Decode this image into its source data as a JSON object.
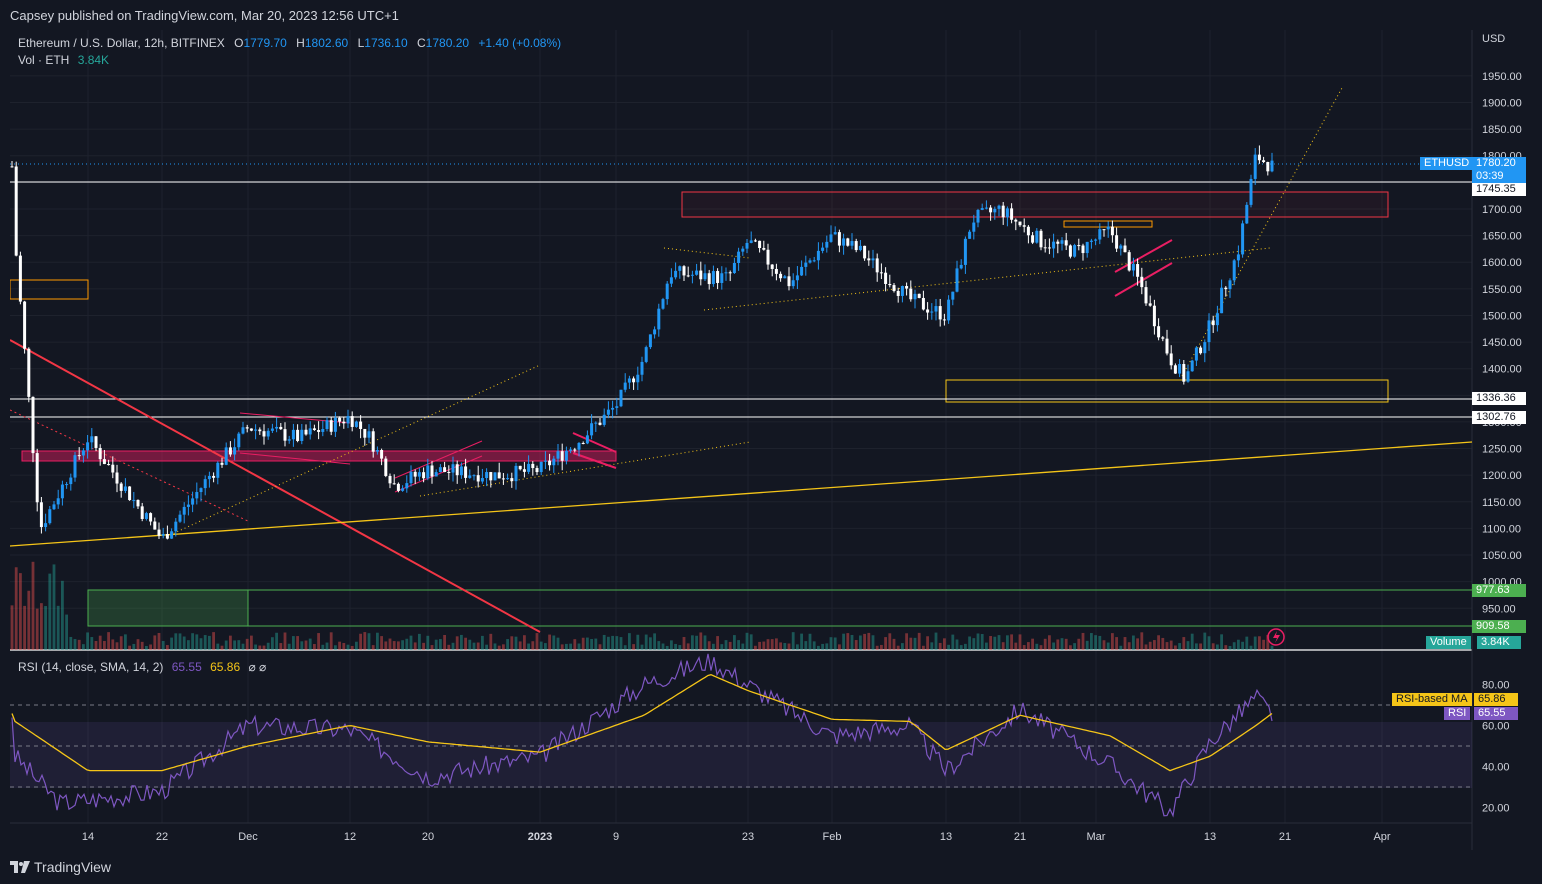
{
  "publisher": "Capsey published on TradingView.com, Mar 20, 2023 12:56 UTC+1",
  "legend": {
    "symbol": "Ethereum / U.S. Dollar, 12h, BITFINEX",
    "open_label": "O",
    "open": "1779.70",
    "high_label": "H",
    "high": "1802.60",
    "low_label": "L",
    "low": "1736.10",
    "close_label": "C",
    "close": "1780.20",
    "change": "+1.40 (+0.08%)",
    "vol_label": "Vol · ETH",
    "vol_value": "3.84K",
    "rsi_label": "RSI (14, close, SMA, 14, 2)",
    "rsi_value": "65.55",
    "rsi_ma_value": "65.86",
    "rsi_icons": "⌀ ⌀"
  },
  "currency": "USD",
  "price_axis": [
    "1950.00",
    "1900.00",
    "1850.00",
    "1800.00",
    "1750.00",
    "1700.00",
    "1650.00",
    "1600.00",
    "1550.00",
    "1500.00",
    "1450.00",
    "1400.00",
    "1350.00",
    "1300.00",
    "1250.00",
    "1200.00",
    "1150.00",
    "1100.00",
    "1050.00",
    "1000.00",
    "950.00"
  ],
  "rsi_axis": [
    "80.00",
    "60.00",
    "40.00",
    "20.00"
  ],
  "time_axis": [
    "14",
    "22",
    "Dec",
    "12",
    "20",
    "2023",
    "9",
    "23",
    "Feb",
    "13",
    "21",
    "Mar",
    "13",
    "21",
    "Apr"
  ],
  "price_tags": {
    "symbol_tag": "ETHUSD",
    "last_price": "1780.20",
    "countdown": "03:39",
    "level_1745": "1745.35",
    "level_1336": "1336.36",
    "level_1302": "1302.76",
    "level_977": "977.63",
    "level_909": "909.58",
    "volume_tag": "Volume",
    "volume_value": "3.84K",
    "rsi_ma_tag": "RSI-based MA",
    "rsi_ma_value": "65.86",
    "rsi_tag": "RSI",
    "rsi_value": "65.55"
  },
  "brand": "TradingView",
  "colors": {
    "background": "#131722",
    "up": "#2196f3",
    "down": "#ffffff",
    "rsi": "#7e57c2",
    "rsi_ma": "#f5c518",
    "trendline_red": "#f23645",
    "zone_pink": "#e91e63",
    "zone_yellow": "#f5c518",
    "zone_green": "#4caf50"
  },
  "chart_data": {
    "type": "candlestick",
    "symbol": "ETHUSD",
    "interval": "12h",
    "ylim": [
      930,
      1980
    ],
    "key_levels": [
      1745.35,
      1336.36,
      1302.76,
      977.63,
      909.58
    ],
    "last_price": 1780.2,
    "series": [
      {
        "name": "price_path",
        "x": [
          "Nov 8",
          "Nov 10",
          "Nov 14",
          "Nov 22",
          "Nov 27",
          "Dec 1",
          "Dec 6",
          "Dec 12",
          "Dec 14",
          "Dec 17",
          "Dec 20",
          "Dec 28",
          "Jan 1",
          "Jan 5",
          "Jan 9",
          "Jan 12",
          "Jan 15",
          "Jan 21",
          "Jan 23",
          "Jan 28",
          "Feb 2",
          "Feb 5",
          "Feb 9",
          "Feb 13",
          "Feb 16",
          "Feb 19",
          "Feb 23",
          "Feb 27",
          "Mar 3",
          "Mar 6",
          "Mar 9",
          "Mar 11",
          "Mar 13",
          "Mar 16",
          "Mar 18",
          "Mar 20"
        ],
        "values": [
          1640,
          1100,
          1270,
          1080,
          1200,
          1290,
          1270,
          1310,
          1270,
          1180,
          1210,
          1200,
          1210,
          1260,
          1330,
          1420,
          1580,
          1570,
          1640,
          1560,
          1650,
          1620,
          1530,
          1500,
          1680,
          1700,
          1640,
          1620,
          1660,
          1560,
          1420,
          1380,
          1480,
          1620,
          1800,
          1780
        ]
      },
      {
        "name": "RSI",
        "x": [
          "Nov 8",
          "Nov 12",
          "Nov 22",
          "Dec 1",
          "Dec 12",
          "Dec 20",
          "Jan 1",
          "Jan 12",
          "Jan 18",
          "Jan 23",
          "Feb 2",
          "Feb 9",
          "Feb 13",
          "Feb 21",
          "Mar 3",
          "Mar 9",
          "Mar 13",
          "Mar 18",
          "Mar 20"
        ],
        "values": [
          45,
          22,
          28,
          60,
          58,
          35,
          45,
          80,
          92,
          80,
          55,
          60,
          38,
          68,
          41,
          18,
          52,
          74,
          65.55
        ]
      },
      {
        "name": "RSI-based MA",
        "x": [
          "Nov 8",
          "Nov 14",
          "Nov 22",
          "Dec 1",
          "Dec 12",
          "Dec 20",
          "Jan 1",
          "Jan 12",
          "Jan 18",
          "Jan 23",
          "Feb 2",
          "Feb 9",
          "Feb 13",
          "Feb 21",
          "Mar 3",
          "Mar 9",
          "Mar 13",
          "Mar 18",
          "Mar 20"
        ],
        "values": [
          62,
          38,
          38,
          50,
          60,
          52,
          47,
          65,
          85,
          77,
          63,
          62,
          48,
          65,
          55,
          38,
          45,
          60,
          65.86
        ]
      }
    ]
  }
}
